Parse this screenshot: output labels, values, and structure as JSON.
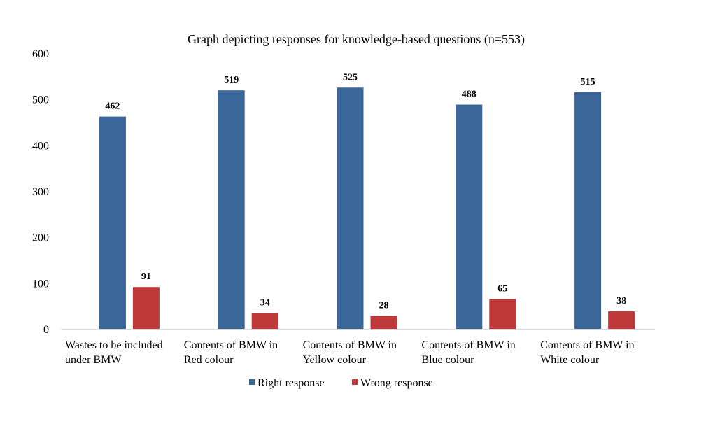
{
  "chart_data": {
    "type": "bar",
    "title": "Graph depicting responses for knowledge-based questions (n=553)",
    "xlabel": "",
    "ylabel": "",
    "ylim": [
      0,
      600
    ],
    "yticks": [
      "0",
      "100",
      "200",
      "300",
      "400",
      "500",
      "600"
    ],
    "categories": [
      [
        "Wastes to be included",
        "under BMW"
      ],
      [
        "Contents of BMW in",
        "Red colour"
      ],
      [
        "Contents of BMW in",
        "Yellow colour"
      ],
      [
        "Contents of BMW in",
        "Blue colour"
      ],
      [
        "Contents of BMW in",
        "White colour"
      ]
    ],
    "series": [
      {
        "name": "Right response",
        "color": "#3A6699",
        "values": [
          462,
          519,
          525,
          488,
          515
        ]
      },
      {
        "name": "Wrong response",
        "color": "#C0393A",
        "values": [
          91,
          34,
          28,
          65,
          38
        ]
      }
    ],
    "grid": false,
    "legend_position": "bottom"
  }
}
